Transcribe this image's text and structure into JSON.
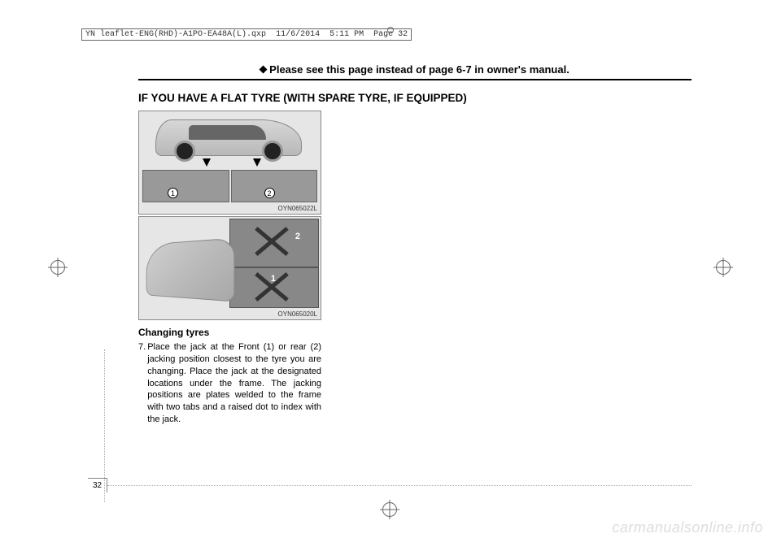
{
  "header": {
    "filename": "YN leaflet-ENG(RHD)-A1PO-EA48A(L).qxp",
    "date": "11/6/2014",
    "time": "5:11 PM",
    "pagelabel": "Page 32"
  },
  "instruction": {
    "text": "Please see this page instead of page 6-7 in owner's manual."
  },
  "section_title": "IF YOU HAVE A FLAT TYRE (WITH SPARE TYRE, IF EQUIPPED)",
  "figures": {
    "fig1_code": "OYN065022L",
    "fig2_code": "OYN065020L",
    "panel1_label": "1",
    "panel2_label": "2",
    "jack_label_1": "1",
    "jack_label_2": "2"
  },
  "subheading": "Changing tyres",
  "step": {
    "num": "7.",
    "text": "Place the jack at the Front (1) or rear (2) jacking position closest to the tyre you are changing. Place the jack at the designated locations under the frame. The jacking positions are plates welded to the frame with two tabs and a raised dot to index with the jack."
  },
  "page_number": "32",
  "watermark": "carmanualsonline.info",
  "colors": {
    "page_bg": "#ffffff",
    "text": "#000000",
    "watermark": "#dddddd",
    "figure_bg": "#e6e6e6",
    "border": "#888888"
  }
}
